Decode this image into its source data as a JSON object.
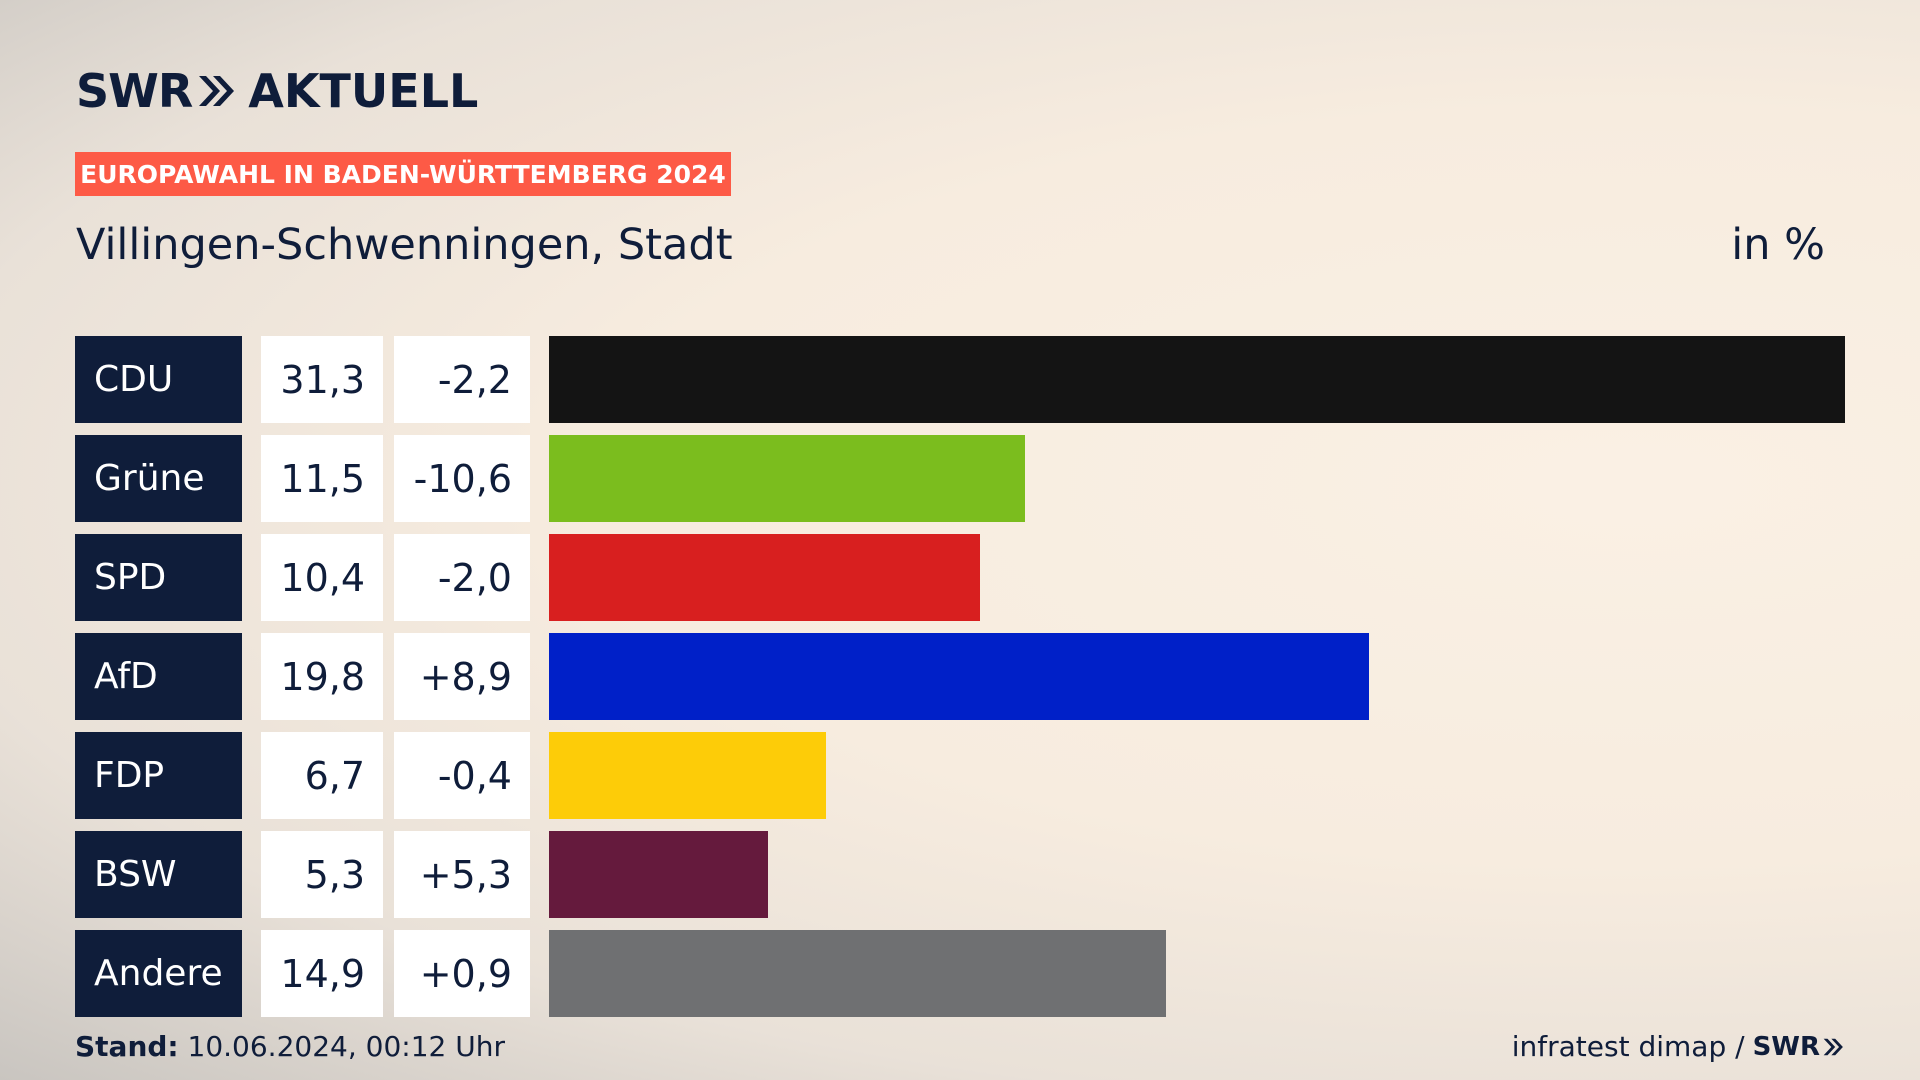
{
  "brand": {
    "name": "SWR",
    "program": "AKTUELL"
  },
  "header": {
    "badge": "EUROPAWAHL IN BADEN-WÜRTTEMBERG 2024",
    "subtitle": "Villingen-Schwenningen, Stadt",
    "unit": "in %"
  },
  "colors": {
    "navy": "#0f1d3a",
    "badge": "#fd5a46"
  },
  "chart_data": {
    "type": "bar",
    "orientation": "horizontal",
    "categories": [
      "CDU",
      "Grüne",
      "SPD",
      "AfD",
      "FDP",
      "BSW",
      "Andere"
    ],
    "values": [
      31.3,
      11.5,
      10.4,
      19.8,
      6.7,
      5.3,
      14.9
    ],
    "value_labels": [
      "31,3",
      "11,5",
      "10,4",
      "19,8",
      "6,7",
      "5,3",
      "14,9"
    ],
    "diff_labels": [
      "-2,2",
      "-10,6",
      "-2,0",
      "+8,9",
      "-0,4",
      "+5,3",
      "+0,9"
    ],
    "bar_colors": [
      "#141414",
      "#7bbd1e",
      "#d81f1f",
      "#0020c8",
      "#fdcc08",
      "#651a3d",
      "#6f7072"
    ],
    "xlim": [
      0,
      31.3
    ],
    "grid": false,
    "legend": "none"
  },
  "footer": {
    "stand_label": "Stand:",
    "stand_value": " 10.06.2024, 00:12 Uhr",
    "source": "infratest dimap /",
    "source_brand": "SWR"
  }
}
